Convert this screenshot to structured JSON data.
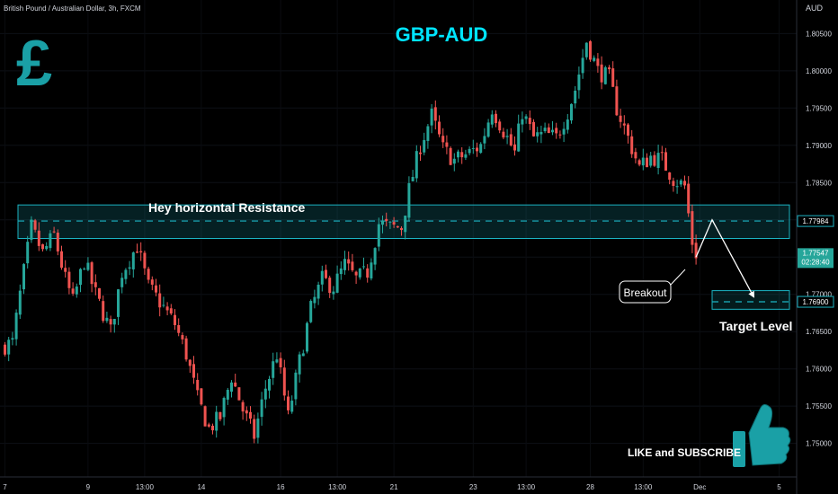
{
  "header": {
    "symbol": "British Pound / Australian Dollar, 3h, FXCM",
    "currency": "AUD"
  },
  "chart_data": {
    "type": "candlestick",
    "title": "GBP-AUD",
    "ylim": [
      1.7455,
      1.8095
    ],
    "y_ticks": [
      "1.80500",
      "1.80000",
      "1.79500",
      "1.79000",
      "1.78500",
      "1.78000",
      "1.77500",
      "1.77000",
      "1.76500",
      "1.76000",
      "1.75500",
      "1.75000"
    ],
    "y_tick_values": [
      1.805,
      1.8,
      1.795,
      1.79,
      1.785,
      1.78,
      1.775,
      1.77,
      1.765,
      1.76,
      1.755,
      1.75
    ],
    "x_ticks": [
      "7",
      "9",
      "13:00",
      "14",
      "16",
      "13:00",
      "21",
      "23",
      "13:00",
      "28",
      "13:00",
      "Dec",
      "5"
    ],
    "x_tick_index": [
      0,
      22,
      37,
      52,
      73,
      88,
      103,
      124,
      138,
      155,
      169,
      184,
      205
    ],
    "candle_count": 184,
    "path": [
      [
        0,
        1.763
      ],
      [
        3,
        1.7635
      ],
      [
        5,
        1.77
      ],
      [
        8,
        1.779
      ],
      [
        11,
        1.7755
      ],
      [
        14,
        1.778
      ],
      [
        17,
        1.772
      ],
      [
        19,
        1.769
      ],
      [
        22,
        1.7745
      ],
      [
        25,
        1.77
      ],
      [
        29,
        1.765
      ],
      [
        32,
        1.773
      ],
      [
        36,
        1.7765
      ],
      [
        39,
        1.771
      ],
      [
        42,
        1.769
      ],
      [
        46,
        1.766
      ],
      [
        49,
        1.762
      ],
      [
        52,
        1.756
      ],
      [
        55,
        1.752
      ],
      [
        58,
        1.7535
      ],
      [
        61,
        1.759
      ],
      [
        64,
        1.7545
      ],
      [
        67,
        1.751
      ],
      [
        70,
        1.7575
      ],
      [
        73,
        1.762
      ],
      [
        76,
        1.7535
      ],
      [
        79,
        1.761
      ],
      [
        82,
        1.768
      ],
      [
        85,
        1.772
      ],
      [
        88,
        1.771
      ],
      [
        91,
        1.774
      ],
      [
        94,
        1.772
      ],
      [
        97,
        1.773
      ],
      [
        100,
        1.7795
      ],
      [
        103,
        1.779
      ],
      [
        106,
        1.779
      ],
      [
        108,
        1.784
      ],
      [
        111,
        1.79
      ],
      [
        114,
        1.794
      ],
      [
        117,
        1.7895
      ],
      [
        120,
        1.788
      ],
      [
        124,
        1.789
      ],
      [
        127,
        1.79
      ],
      [
        130,
        1.795
      ],
      [
        133,
        1.792
      ],
      [
        136,
        1.789
      ],
      [
        138,
        1.7945
      ],
      [
        141,
        1.791
      ],
      [
        144,
        1.7915
      ],
      [
        147,
        1.791
      ],
      [
        150,
        1.7945
      ],
      [
        152,
        1.7975
      ],
      [
        155,
        1.804
      ],
      [
        158,
        1.8
      ],
      [
        161,
        1.799
      ],
      [
        163,
        1.795
      ],
      [
        166,
        1.791
      ],
      [
        169,
        1.787
      ],
      [
        172,
        1.7885
      ],
      [
        175,
        1.788
      ],
      [
        178,
        1.7855
      ],
      [
        181,
        1.7845
      ],
      [
        183,
        1.777
      ],
      [
        184,
        1.7755
      ]
    ],
    "levels": {
      "resistance_label": "Hey horizontal Resistance",
      "resistance_zone": [
        1.7775,
        1.782
      ],
      "resistance_value": "1.77984",
      "resistance_price": 1.77984,
      "target_value": "1.76900",
      "target_price": 1.769,
      "target_zone": [
        1.768,
        1.7705
      ],
      "target_label": "Target Level"
    },
    "last_price": "1.77547",
    "countdown": "02:28:40",
    "annotations": {
      "breakout": "Breakout",
      "cta": "LIKE and SUBSCRIBE"
    },
    "colors": {
      "up": "#26a69a",
      "down": "#ef5350",
      "accent": "#00e5ff",
      "zone": "#1bb3c2",
      "logo": "#1aa0a6"
    }
  },
  "icons": {
    "pound": "pound-sign-icon",
    "thumbs": "thumbs-up-icon"
  }
}
